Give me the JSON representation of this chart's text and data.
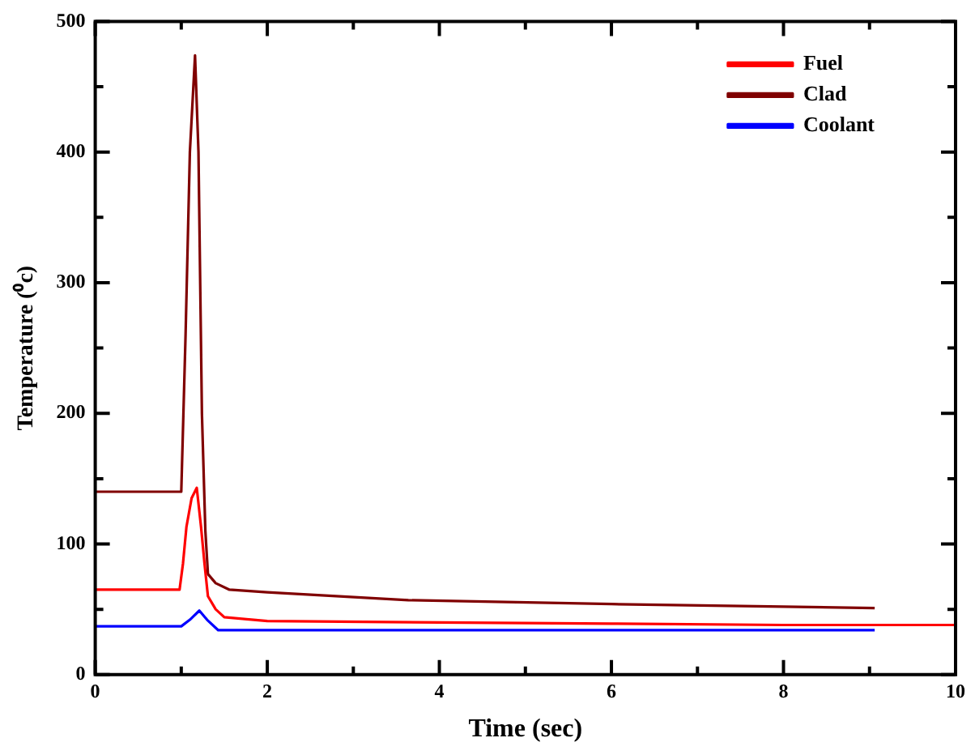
{
  "chart_data": {
    "type": "line",
    "xlabel": "Time (sec)",
    "ylabel": "Temperature (⁰c)",
    "xlim": [
      0,
      10
    ],
    "ylim": [
      0,
      500
    ],
    "xticks": [
      0,
      {
        "value": 1,
        "label": null
      },
      2,
      {
        "value": 3,
        "label": null
      },
      4,
      {
        "value": 5,
        "label": null
      },
      6,
      {
        "value": 7,
        "label": null
      },
      8,
      {
        "value": 9,
        "label": null
      },
      10
    ],
    "yticks": [
      0,
      {
        "value": 50,
        "label": null
      },
      100,
      {
        "value": 150,
        "label": null
      },
      200,
      {
        "value": 250,
        "label": null
      },
      300,
      {
        "value": 350,
        "label": null
      },
      400,
      {
        "value": 450,
        "label": null
      },
      500
    ],
    "grid": false,
    "legend": "top right",
    "marker": "none",
    "line_style": "solid",
    "series": [
      {
        "name": "Fuel",
        "color": "#ff0000",
        "x": [
          0,
          0.98,
          1.02,
          1.06,
          1.12,
          1.18,
          1.23,
          1.27,
          1.31,
          1.4,
          1.5,
          2,
          4,
          6,
          8,
          10
        ],
        "values": [
          65,
          65,
          85,
          113,
          135,
          143,
          113,
          85,
          60,
          50,
          44,
          41,
          40,
          39,
          38,
          38
        ]
      },
      {
        "name": "Clad",
        "color": "#800000",
        "x": [
          0,
          1.0,
          1.05,
          1.1,
          1.16,
          1.2,
          1.24,
          1.28,
          1.31,
          1.4,
          1.56,
          2,
          3.64,
          6,
          8,
          9.06
        ],
        "values": [
          140,
          140,
          260,
          400,
          474,
          400,
          200,
          110,
          77,
          70,
          65,
          63,
          57,
          54,
          52,
          51
        ]
      },
      {
        "name": "Coolant",
        "color": "#0000ff",
        "x": [
          0,
          1.0,
          1.1,
          1.21,
          1.3,
          1.43,
          2,
          4,
          6,
          8,
          9.06
        ],
        "values": [
          37,
          37,
          42,
          49,
          42,
          34,
          34,
          34,
          34,
          34,
          34
        ]
      }
    ]
  }
}
